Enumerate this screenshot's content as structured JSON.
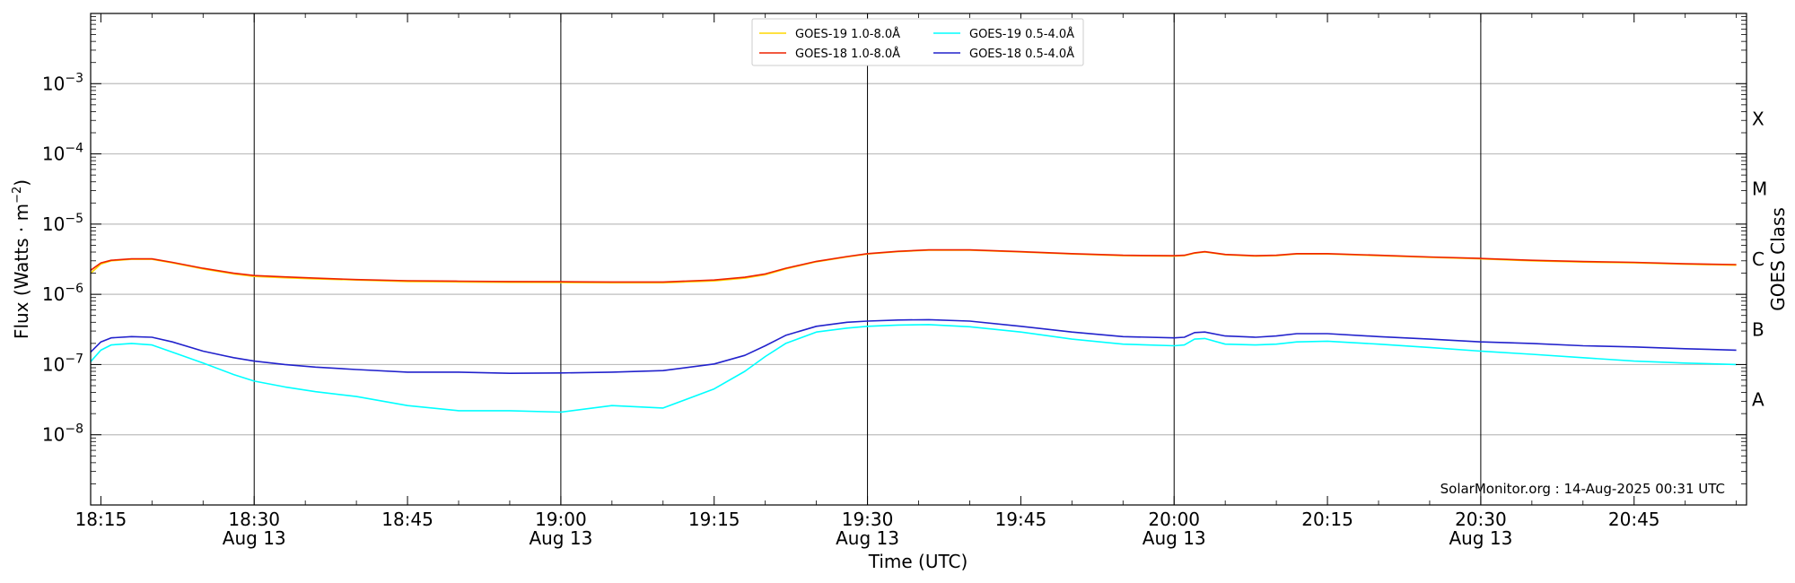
{
  "chart_data": {
    "type": "line",
    "y_scale": "log",
    "grid": "horizontal at decades, vertical at half-hours",
    "legend_placement": "top-center",
    "xlabel": "Time (UTC)",
    "ylabel": "Flux (Watts · m",
    "ylabel_sup": "−2",
    "ylabel_end": ")",
    "right_axis_label": "GOES Class",
    "credit": "SolarMonitor.org : 14-Aug-2025 00:31 UTC",
    "xlim": [
      "2025-08-13 18:14",
      "2025-08-13 20:56"
    ],
    "ylim": [
      1e-09,
      0.01
    ],
    "x_ticks": [
      {
        "t": "18:15",
        "date": ""
      },
      {
        "t": "18:30",
        "date": "Aug 13"
      },
      {
        "t": "18:45",
        "date": ""
      },
      {
        "t": "19:00",
        "date": "Aug 13"
      },
      {
        "t": "19:15",
        "date": ""
      },
      {
        "t": "19:30",
        "date": "Aug 13"
      },
      {
        "t": "19:45",
        "date": ""
      },
      {
        "t": "20:00",
        "date": "Aug 13"
      },
      {
        "t": "20:15",
        "date": ""
      },
      {
        "t": "20:30",
        "date": "Aug 13"
      },
      {
        "t": "20:45",
        "date": ""
      }
    ],
    "y_ticks": [
      "10-3",
      "10-4",
      "10-5",
      "10-6",
      "10-7",
      "10-8"
    ],
    "goes_classes": [
      "X",
      "M",
      "C",
      "B",
      "A"
    ],
    "x_times": [
      "18:14",
      "18:15",
      "18:16",
      "18:18",
      "18:20",
      "18:22",
      "18:25",
      "18:28",
      "18:30",
      "18:33",
      "18:36",
      "18:40",
      "18:45",
      "18:50",
      "18:55",
      "19:00",
      "19:05",
      "19:10",
      "19:15",
      "19:18",
      "19:20",
      "19:22",
      "19:25",
      "19:28",
      "19:30",
      "19:33",
      "19:36",
      "19:40",
      "19:45",
      "19:50",
      "19:55",
      "20:00",
      "20:01",
      "20:02",
      "20:03",
      "20:05",
      "20:08",
      "20:10",
      "20:12",
      "20:15",
      "20:20",
      "20:25",
      "20:30",
      "20:35",
      "20:40",
      "20:45",
      "20:50",
      "20:55"
    ],
    "series": [
      {
        "name": "GOES-19 1.0-8.0Å",
        "color": "#ffd700",
        "values": [
          2e-06,
          2.7e-06,
          3e-06,
          3.15e-06,
          3.15e-06,
          2.8e-06,
          2.3e-06,
          1.95e-06,
          1.8e-06,
          1.72e-06,
          1.66e-06,
          1.6e-06,
          1.52e-06,
          1.5e-06,
          1.48e-06,
          1.47e-06,
          1.46e-06,
          1.46e-06,
          1.55e-06,
          1.7e-06,
          1.9e-06,
          2.3e-06,
          2.9e-06,
          3.4e-06,
          3.75e-06,
          4.05e-06,
          4.25e-06,
          4.25e-06,
          4e-06,
          3.75e-06,
          3.55e-06,
          3.5e-06,
          3.55e-06,
          3.85e-06,
          4e-06,
          3.65e-06,
          3.5e-06,
          3.55e-06,
          3.75e-06,
          3.75e-06,
          3.55e-06,
          3.35e-06,
          3.2e-06,
          3e-06,
          2.88e-06,
          2.8e-06,
          2.68e-06,
          2.6e-06
        ]
      },
      {
        "name": "GOES-18 1.0-8.0Å",
        "color": "#ee2200",
        "values": [
          2.2e-06,
          2.8e-06,
          3.05e-06,
          3.2e-06,
          3.2e-06,
          2.85e-06,
          2.35e-06,
          2e-06,
          1.85e-06,
          1.77e-06,
          1.7e-06,
          1.62e-06,
          1.56e-06,
          1.54e-06,
          1.52e-06,
          1.51e-06,
          1.5e-06,
          1.5e-06,
          1.6e-06,
          1.75e-06,
          1.95e-06,
          2.35e-06,
          2.95e-06,
          3.45e-06,
          3.8e-06,
          4.1e-06,
          4.3e-06,
          4.3e-06,
          4.05e-06,
          3.8e-06,
          3.6e-06,
          3.55e-06,
          3.6e-06,
          3.9e-06,
          4.05e-06,
          3.7e-06,
          3.55e-06,
          3.6e-06,
          3.8e-06,
          3.8e-06,
          3.6e-06,
          3.4e-06,
          3.25e-06,
          3.05e-06,
          2.93e-06,
          2.85e-06,
          2.72e-06,
          2.65e-06
        ]
      },
      {
        "name": "GOES-19 0.5-4.0Å",
        "color": "#00ffff",
        "values": [
          1.1e-07,
          1.6e-07,
          1.9e-07,
          2e-07,
          1.9e-07,
          1.5e-07,
          1.05e-07,
          7.2e-08,
          5.8e-08,
          4.8e-08,
          4.1e-08,
          3.5e-08,
          2.6e-08,
          2.2e-08,
          2.2e-08,
          2.1e-08,
          2.6e-08,
          2.4e-08,
          4.5e-08,
          8e-08,
          1.3e-07,
          2e-07,
          2.9e-07,
          3.3e-07,
          3.5e-07,
          3.65e-07,
          3.7e-07,
          3.45e-07,
          2.9e-07,
          2.3e-07,
          1.95e-07,
          1.85e-07,
          1.9e-07,
          2.3e-07,
          2.35e-07,
          1.95e-07,
          1.9e-07,
          1.95e-07,
          2.1e-07,
          2.15e-07,
          1.95e-07,
          1.75e-07,
          1.55e-07,
          1.4e-07,
          1.25e-07,
          1.12e-07,
          1.05e-07,
          1e-07
        ]
      },
      {
        "name": "GOES-18 0.5-4.0Å",
        "color": "#2222cc",
        "values": [
          1.5e-07,
          2.1e-07,
          2.4e-07,
          2.5e-07,
          2.45e-07,
          2.1e-07,
          1.55e-07,
          1.25e-07,
          1.12e-07,
          1e-07,
          9.2e-08,
          8.5e-08,
          7.8e-08,
          7.8e-08,
          7.5e-08,
          7.6e-08,
          7.8e-08,
          8.2e-08,
          1.02e-07,
          1.35e-07,
          1.85e-07,
          2.6e-07,
          3.5e-07,
          4e-07,
          4.15e-07,
          4.3e-07,
          4.35e-07,
          4.15e-07,
          3.5e-07,
          2.9e-07,
          2.5e-07,
          2.4e-07,
          2.45e-07,
          2.85e-07,
          2.9e-07,
          2.55e-07,
          2.45e-07,
          2.55e-07,
          2.75e-07,
          2.75e-07,
          2.5e-07,
          2.3e-07,
          2.1e-07,
          2e-07,
          1.85e-07,
          1.78e-07,
          1.68e-07,
          1.6e-07
        ]
      }
    ]
  }
}
